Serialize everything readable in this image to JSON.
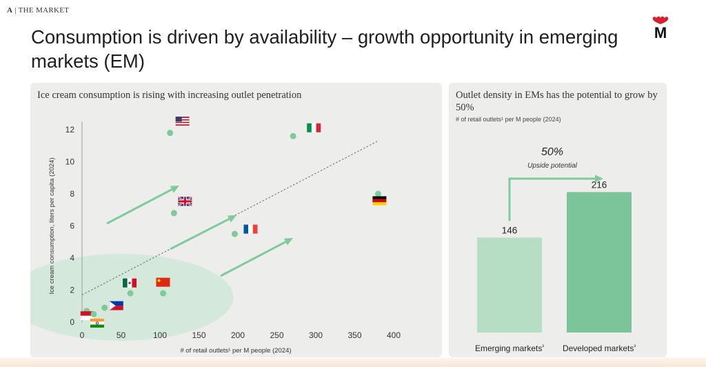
{
  "header": {
    "section_letter": "A",
    "section_name": "THE MARKET",
    "title": "Consumption is driven by availability – growth opportunity in emerging markets (EM)",
    "logo_letter": "M"
  },
  "left_panel": {
    "title": "Ice cream consumption is rising with increasing outlet penetration"
  },
  "right_panel": {
    "title": "Outlet density in EMs has the potential to grow by 50%",
    "subtitle": "# of retail outlets¹ per M people (2024)",
    "upside_value": "50%",
    "upside_label": "Upside potential"
  },
  "colors": {
    "panel_bg": "#ededeb",
    "marker": "#7ccb99",
    "arrow": "#7ccb99",
    "bar_emerging": "#b6dec5",
    "bar_developed": "#7cc59a",
    "ellipse": "#cfe8d8"
  },
  "chart_data": [
    {
      "type": "scatter",
      "title": "",
      "xlabel": "# of retail outlets¹ per M people (2024)",
      "ylabel": "Ice cream consumption, liters per capita (2024)",
      "xlim": [
        0,
        400
      ],
      "ylim": [
        0,
        12
      ],
      "xticks": [
        0,
        50,
        100,
        150,
        200,
        250,
        300,
        350,
        400
      ],
      "yticks": [
        0,
        2,
        4,
        6,
        8,
        10,
        12
      ],
      "grid": false,
      "trendline": "dashed",
      "points": [
        {
          "country": "United States",
          "flag": "us-flag",
          "x": 113,
          "y": 11.8
        },
        {
          "country": "Italy",
          "flag": "italy-flag",
          "x": 271,
          "y": 11.6
        },
        {
          "country": "Germany",
          "flag": "germany-flag",
          "x": 380,
          "y": 8.0
        },
        {
          "country": "United Kingdom",
          "flag": "uk-flag",
          "x": 118,
          "y": 6.8
        },
        {
          "country": "France",
          "flag": "france-flag",
          "x": 196,
          "y": 5.5
        },
        {
          "country": "Mexico",
          "flag": "mexico-flag",
          "x": 62,
          "y": 1.8
        },
        {
          "country": "China",
          "flag": "china-flag",
          "x": 104,
          "y": 1.8
        },
        {
          "country": "Philippines",
          "flag": "philippines-flag",
          "x": 29,
          "y": 0.9
        },
        {
          "country": "Indonesia",
          "flag": "indonesia-flag",
          "x": 6,
          "y": 0.7
        },
        {
          "country": "India",
          "flag": "india-flag",
          "x": 15,
          "y": 0.5
        }
      ]
    },
    {
      "type": "bar",
      "title": "",
      "categories": [
        "Emerging markets²",
        "Developed markets³"
      ],
      "values": [
        146,
        216
      ],
      "value_labels": [
        "146",
        "216"
      ],
      "ylim": [
        0,
        260
      ]
    }
  ]
}
